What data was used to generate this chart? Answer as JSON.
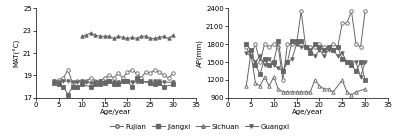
{
  "left_x_fujian": [
    4,
    5,
    6,
    7,
    8,
    9,
    10,
    11,
    12,
    13,
    14,
    15,
    16,
    17,
    18,
    19,
    20,
    21,
    22,
    23,
    24,
    25,
    26,
    27,
    28,
    29,
    30
  ],
  "left_y_fujian": [
    18.5,
    18.6,
    18.8,
    19.5,
    18.3,
    18.5,
    18.5,
    18.5,
    18.8,
    18.5,
    18.5,
    18.8,
    19.0,
    18.8,
    19.2,
    18.8,
    19.3,
    19.5,
    19.2,
    18.8,
    19.3,
    19.2,
    19.5,
    19.3,
    19.0,
    18.8,
    19.2
  ],
  "left_x_jiangxi": [
    4,
    5,
    6,
    7,
    8,
    9,
    10,
    12,
    13,
    14,
    15,
    16,
    17,
    18,
    19,
    20,
    21,
    22,
    23,
    25,
    26,
    27,
    28,
    30
  ],
  "left_y_jiangxi": [
    18.3,
    18.2,
    18.0,
    17.3,
    18.0,
    18.0,
    18.2,
    18.0,
    18.2,
    18.2,
    18.3,
    18.5,
    18.2,
    18.2,
    18.5,
    18.5,
    18.0,
    18.8,
    18.5,
    18.3,
    18.2,
    18.3,
    18.0,
    18.2
  ],
  "left_x_sichuan": [
    10,
    11,
    12,
    13,
    14,
    15,
    16,
    17,
    18,
    19,
    20,
    21,
    22,
    23,
    24,
    25,
    26,
    27,
    28,
    29,
    30
  ],
  "left_y_sichuan": [
    22.5,
    22.6,
    22.8,
    22.6,
    22.5,
    22.5,
    22.5,
    22.3,
    22.5,
    22.4,
    22.3,
    22.4,
    22.3,
    22.5,
    22.5,
    22.3,
    22.3,
    22.4,
    22.5,
    22.3,
    22.6
  ],
  "left_x_guangxi": [
    4,
    5,
    6,
    7,
    8,
    9,
    10,
    11,
    12,
    13,
    14,
    15,
    16,
    17,
    18,
    20,
    21,
    22,
    25,
    26,
    27,
    28,
    30
  ],
  "left_y_guangxi": [
    18.5,
    18.4,
    18.5,
    18.5,
    18.4,
    18.4,
    18.5,
    18.4,
    18.3,
    18.4,
    18.5,
    18.4,
    18.5,
    18.4,
    18.4,
    18.5,
    18.4,
    18.4,
    18.5,
    18.5,
    18.5,
    18.4,
    18.4
  ],
  "right_x_fujian": [
    4,
    5,
    6,
    7,
    8,
    9,
    10,
    11,
    12,
    13,
    14,
    15,
    16,
    17,
    18,
    19,
    20,
    21,
    22,
    23,
    24,
    25,
    26,
    27,
    28,
    29,
    30
  ],
  "right_y_fujian": [
    1750,
    1600,
    1800,
    1500,
    1800,
    1750,
    1800,
    1750,
    1200,
    1800,
    1800,
    1800,
    2350,
    1750,
    1750,
    1750,
    1800,
    1750,
    1750,
    1800,
    1750,
    2150,
    2150,
    2350,
    1800,
    1750,
    2350
  ],
  "right_x_jiangxi": [
    4,
    5,
    6,
    7,
    8,
    9,
    10,
    11,
    12,
    13,
    14,
    15,
    16,
    17,
    18,
    19,
    20,
    21,
    22,
    23,
    24,
    25,
    26,
    27,
    28,
    29,
    30
  ],
  "right_y_jiangxi": [
    1800,
    1700,
    1450,
    1300,
    1550,
    1450,
    1500,
    1850,
    1350,
    1500,
    1850,
    1850,
    1850,
    1750,
    1650,
    1800,
    1750,
    1700,
    1750,
    1700,
    1750,
    1550,
    1500,
    1450,
    1350,
    1500,
    1200
  ],
  "right_x_sichuan": [
    4,
    5,
    6,
    7,
    8,
    9,
    10,
    11,
    12,
    13,
    14,
    15,
    16,
    17,
    18,
    19,
    20,
    21,
    22,
    23,
    25,
    26,
    27,
    28,
    30
  ],
  "right_y_sichuan": [
    1100,
    1650,
    1150,
    1100,
    1250,
    1100,
    1250,
    1050,
    1000,
    1000,
    1000,
    1000,
    1000,
    1000,
    1000,
    1200,
    1100,
    1050,
    1050,
    1000,
    1200,
    1000,
    950,
    1000,
    1050
  ],
  "right_x_guangxi": [
    4,
    5,
    6,
    7,
    8,
    9,
    10,
    11,
    12,
    13,
    14,
    15,
    16,
    17,
    18,
    19,
    20,
    21,
    22,
    23,
    24,
    25,
    26,
    27,
    28,
    29,
    30
  ],
  "right_y_guangxi": [
    1650,
    1600,
    1500,
    1600,
    1450,
    1550,
    1450,
    1400,
    1350,
    1500,
    1550,
    1800,
    1750,
    1750,
    1700,
    1600,
    1700,
    1600,
    1700,
    1700,
    1600,
    1650,
    1500,
    1500,
    1500,
    1250,
    1500
  ],
  "left_ylim": [
    17,
    25
  ],
  "left_yticks": [
    17,
    19,
    21,
    23,
    25
  ],
  "left_xlabel": "Age/year",
  "left_ylabel": "MAT(°C)",
  "right_ylim": [
    900,
    2400
  ],
  "right_yticks": [
    900,
    1200,
    1500,
    1800,
    2100,
    2400
  ],
  "right_xlabel": "Age/year",
  "right_ylabel": "AP(mm)",
  "xlim": [
    0,
    35
  ],
  "xticks": [
    0,
    5,
    10,
    15,
    20,
    25,
    30,
    35
  ],
  "legend_labels": [
    "Fujian",
    "Jiangxi",
    "Sichuan",
    "Guangxi"
  ]
}
